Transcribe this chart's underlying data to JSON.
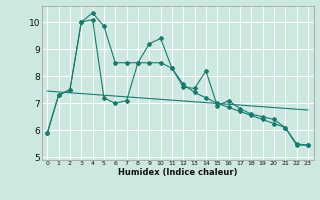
{
  "title": "",
  "xlabel": "Humidex (Indice chaleur)",
  "background_color": "#cce8e0",
  "line_color": "#1a7a6e",
  "grid_color": "#ffffff",
  "xlim": [
    -0.5,
    23.5
  ],
  "ylim": [
    4.9,
    10.6
  ],
  "yticks": [
    5,
    6,
    7,
    8,
    9,
    10
  ],
  "xticks": [
    0,
    1,
    2,
    3,
    4,
    5,
    6,
    7,
    8,
    9,
    10,
    11,
    12,
    13,
    14,
    15,
    16,
    17,
    18,
    19,
    20,
    21,
    22,
    23
  ],
  "line1_x": [
    0,
    1,
    2,
    3,
    4,
    5,
    6,
    7,
    8,
    9,
    10,
    11,
    12,
    13,
    14,
    15,
    16,
    17,
    18,
    19,
    20,
    21,
    22,
    23
  ],
  "line1_y": [
    5.9,
    7.3,
    7.5,
    10.0,
    10.1,
    7.2,
    7.0,
    7.1,
    8.5,
    9.2,
    9.4,
    8.3,
    7.6,
    7.55,
    8.2,
    6.9,
    7.1,
    6.8,
    6.6,
    6.5,
    6.4,
    6.1,
    5.45,
    5.45
  ],
  "line2_x": [
    0,
    1,
    2,
    3,
    4,
    5,
    6,
    7,
    8,
    9,
    10,
    11,
    12,
    13,
    14,
    15,
    16,
    17,
    18,
    19,
    20,
    21,
    22,
    23
  ],
  "line2_y": [
    5.9,
    7.3,
    7.5,
    10.0,
    10.35,
    9.85,
    8.5,
    8.5,
    8.5,
    8.5,
    8.5,
    8.3,
    7.7,
    7.4,
    7.2,
    7.0,
    6.85,
    6.7,
    6.55,
    6.4,
    6.25,
    6.1,
    5.5,
    5.45
  ],
  "line3_x": [
    0,
    23
  ],
  "line3_y": [
    7.45,
    6.75
  ]
}
